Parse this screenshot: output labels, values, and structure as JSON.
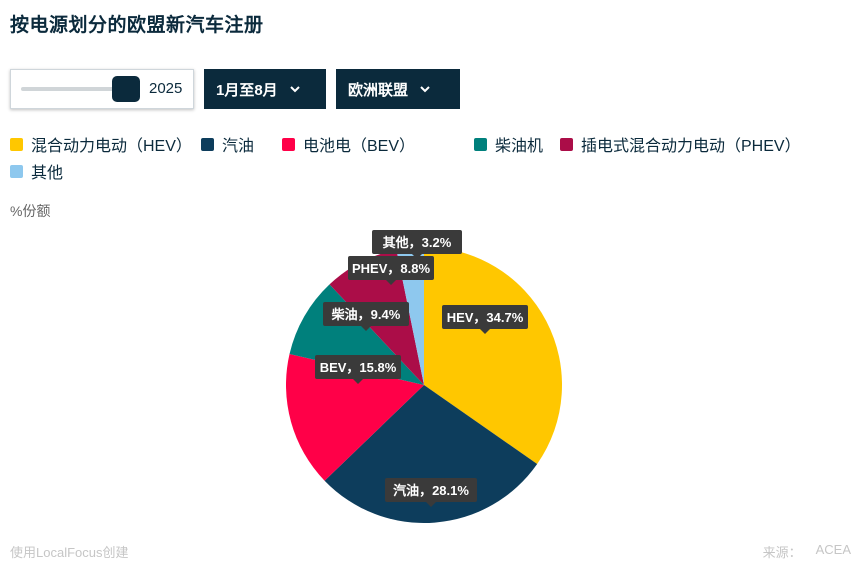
{
  "title": "按电源划分的欧盟新汽车注册",
  "controls": {
    "year_value": "2025",
    "period_label": "1月至8月",
    "region_label": "欧洲联盟"
  },
  "unit_label": "%份额",
  "footer": {
    "credit": "使用LocalFocus创建",
    "source_label": "来源：",
    "source_value": "ACEA"
  },
  "colors": {
    "hev": "#ffc700",
    "petrol": "#0d3d5c",
    "bev": "#ff0048",
    "diesel": "#00807c",
    "phev": "#ab0d48",
    "other": "#8ec8ee"
  },
  "legend": [
    {
      "label": "混合动力电动（HEV）",
      "color": "#ffc700"
    },
    {
      "label": "汽油",
      "color": "#0d3d5c"
    },
    {
      "label": "电池电（BEV）",
      "color": "#ff0048"
    },
    {
      "label": "柴油机",
      "color": "#00807c"
    },
    {
      "label": "插电式混合动力电动（PHEV）",
      "color": "#ab0d48"
    },
    {
      "label": "其他",
      "color": "#8ec8ee"
    }
  ],
  "chart_data": {
    "type": "pie",
    "unit": "%份额",
    "legend_position": "top",
    "slices": [
      {
        "name": "混合动力电动（HEV）",
        "value": 34.7,
        "label": "HEV，34.7%",
        "color": "#ffc700"
      },
      {
        "name": "汽油",
        "value": 28.1,
        "label": "汽油，28.1%",
        "color": "#0d3d5c"
      },
      {
        "name": "电池电（BEV）",
        "value": 15.8,
        "label": "BEV，15.8%",
        "color": "#ff0048"
      },
      {
        "name": "柴油机",
        "value": 9.4,
        "label": "柴油，9.4%",
        "color": "#00807c"
      },
      {
        "name": "插电式混合动力电动（PHEV）",
        "value": 8.8,
        "label": "PHEV，8.8%",
        "color": "#ab0d48"
      },
      {
        "name": "其他",
        "value": 3.2,
        "label": "其他，3.2%",
        "color": "#8ec8ee"
      }
    ]
  }
}
